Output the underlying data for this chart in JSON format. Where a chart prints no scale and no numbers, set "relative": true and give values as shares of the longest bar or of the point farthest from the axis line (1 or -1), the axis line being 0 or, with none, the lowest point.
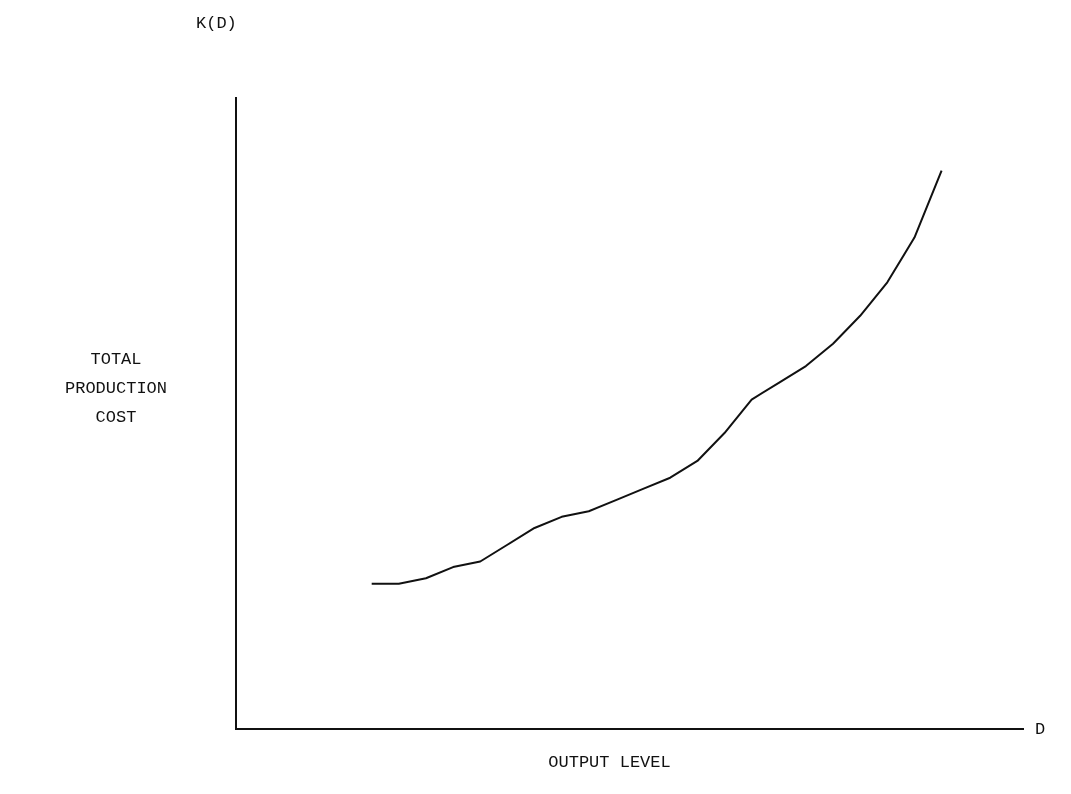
{
  "chart_data": {
    "type": "line",
    "relative": true,
    "ylabel": "TOTAL PRODUCTION COST",
    "xlabel": "OUTPUT LEVEL",
    "annotations": [
      "K(D)",
      "D"
    ],
    "color": "#111111",
    "marker": "none",
    "grid": false,
    "legend": false,
    "tick_labels": false,
    "categories": [
      null,
      null,
      null,
      null,
      null,
      null,
      null,
      null,
      null,
      null,
      null,
      null,
      null,
      null,
      null,
      null,
      null,
      null,
      null,
      null,
      null,
      null,
      null,
      null,
      null,
      null,
      null,
      null,
      null,
      null
    ],
    "values": [
      null,
      null,
      null,
      null,
      null,
      0.26,
      0.26,
      0.27,
      0.29,
      0.3,
      0.33,
      0.36,
      0.38,
      0.39,
      0.41,
      0.43,
      0.45,
      0.48,
      0.53,
      0.59,
      0.62,
      0.65,
      0.69,
      0.74,
      0.8,
      0.88,
      1,
      null,
      null,
      null
    ]
  }
}
